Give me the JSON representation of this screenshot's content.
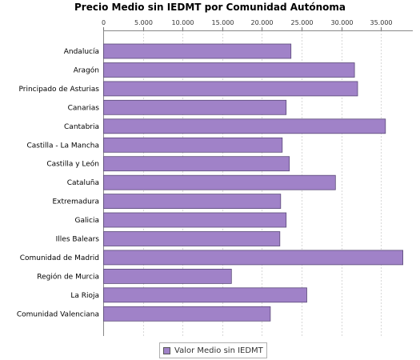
{
  "chart_data": {
    "type": "bar",
    "orientation": "horizontal",
    "title": "Precio Medio sin IEDMT por Comunidad Autónoma",
    "xlabel": "",
    "ylabel": "",
    "xlim": [
      0,
      39000
    ],
    "x_ticks": [
      0,
      5000,
      10000,
      15000,
      20000,
      25000,
      30000,
      35000
    ],
    "x_tick_labels": [
      "0",
      "5.000",
      "10.000",
      "15.000",
      "20.000",
      "25.000",
      "30.000",
      "35.000"
    ],
    "x_axis_position": "top",
    "grid": true,
    "legend_position": "bottom-center",
    "categories": [
      "Andalucía",
      "Aragón",
      "Principado de Asturias",
      "Canarias",
      "Cantabria",
      "Castilla - La Mancha",
      "Castilla y León",
      "Cataluña",
      "Extremadura",
      "Galicia",
      "Illes Balears",
      "Comunidad de Madrid",
      "Región de Murcia",
      "La Rioja",
      "Comunidad Valenciana"
    ],
    "series": [
      {
        "name": "Valor Medio sin IEDMT",
        "color": "#a082c8",
        "values": [
          23600,
          31600,
          32000,
          23000,
          35500,
          22500,
          23400,
          29200,
          22300,
          23000,
          22200,
          37700,
          16100,
          25600,
          21000
        ]
      }
    ]
  }
}
